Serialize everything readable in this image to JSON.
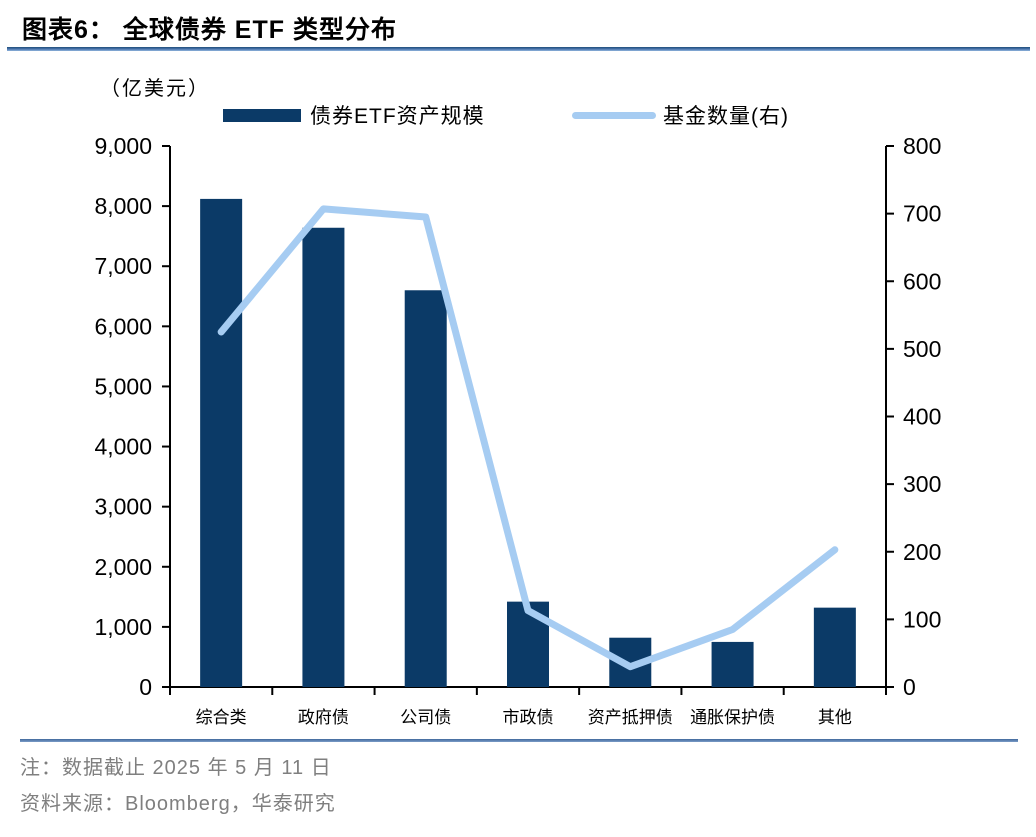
{
  "header": {
    "title": "图表6： 全球债券 ETF 类型分布"
  },
  "chart_data": {
    "type": "bar+line combo",
    "unit_label": "（亿美元）",
    "categories": [
      "综合类",
      "政府债",
      "公司债",
      "市政债",
      "资产抵押债",
      "通胀保护债",
      "其他"
    ],
    "series": [
      {
        "name": "债券ETF资产规模",
        "type": "bar",
        "axis": "left",
        "color": "#0b3a67",
        "values": [
          8120,
          7640,
          6600,
          1420,
          820,
          750,
          1320
        ]
      },
      {
        "name": "基金数量(右)",
        "type": "line",
        "axis": "right",
        "color": "#a6ccf2",
        "values": [
          525,
          707,
          695,
          113,
          30,
          85,
          203
        ]
      }
    ],
    "left_axis": {
      "min": 0,
      "max": 9000,
      "step": 1000,
      "tick_labels": [
        "0",
        "1,000",
        "2,000",
        "3,000",
        "4,000",
        "5,000",
        "6,000",
        "7,000",
        "8,000",
        "9,000"
      ]
    },
    "right_axis": {
      "min": 0,
      "max": 800,
      "step": 100,
      "tick_labels": [
        "0",
        "100",
        "200",
        "300",
        "400",
        "500",
        "600",
        "700",
        "800"
      ]
    },
    "legend_position": "top",
    "grid": false,
    "axis_color": "#000000"
  },
  "footer": {
    "note": "注：数据截止 2025 年 5 月 11 日",
    "source": "资料来源：Bloomberg，华泰研究"
  }
}
